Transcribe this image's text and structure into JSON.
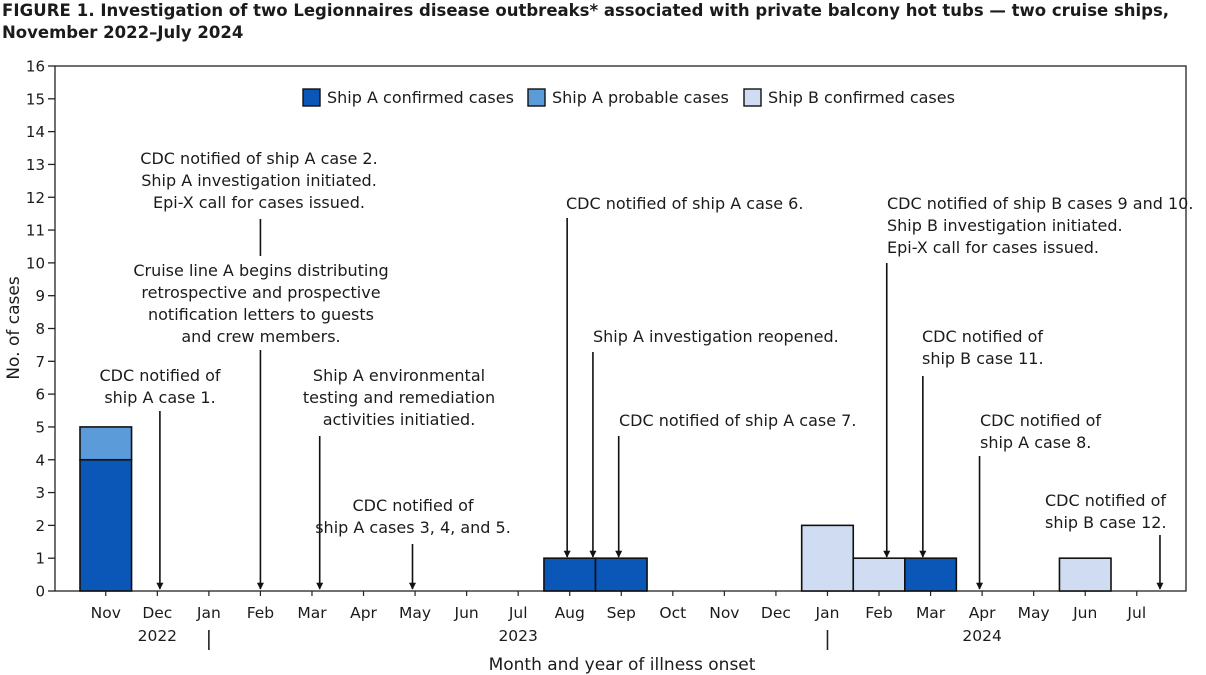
{
  "figure": {
    "label": "FIGURE 1",
    "title": ". Investigation of two Legionnaires disease outbreaks* associated with private balcony hot tubs — two cruise ships,",
    "title_line2": "November 2022–July 2024"
  },
  "chart_data": {
    "type": "bar",
    "stacked": true,
    "xlabel": "Month and year of illness onset",
    "ylabel": "No. of cases",
    "ylim": [
      0,
      16
    ],
    "yticks": [
      0,
      1,
      2,
      3,
      4,
      5,
      6,
      7,
      8,
      9,
      10,
      11,
      12,
      13,
      14,
      15,
      16
    ],
    "grid": false,
    "legend_position": "top-center",
    "categories": [
      "Nov",
      "Dec",
      "Jan",
      "Feb",
      "Mar",
      "Apr",
      "May",
      "Jun",
      "Jul",
      "Aug",
      "Sep",
      "Oct",
      "Nov",
      "Dec",
      "Jan",
      "Feb",
      "Mar",
      "Apr",
      "May",
      "Jun",
      "Jul"
    ],
    "years": [
      {
        "label": "2022",
        "at_category": 1
      },
      {
        "label": "2023",
        "at_category": 8
      },
      {
        "label": "2024",
        "at_category": 17
      }
    ],
    "year_dividers_before_category": [
      2,
      14
    ],
    "series": [
      {
        "name": "Ship A confirmed cases",
        "color": "#0b57b7",
        "values": [
          4,
          0,
          0,
          0,
          0,
          0,
          0,
          0,
          0,
          1,
          1,
          0,
          0,
          0,
          0,
          0,
          1,
          0,
          0,
          0,
          0
        ]
      },
      {
        "name": "Ship A probable cases",
        "color": "#5b9bd9",
        "values": [
          1,
          0,
          0,
          0,
          0,
          0,
          0,
          0,
          0,
          0,
          0,
          0,
          0,
          0,
          0,
          0,
          0,
          0,
          0,
          0,
          0
        ]
      },
      {
        "name": "Ship B confirmed cases",
        "color": "#cfdcf1",
        "values": [
          0,
          0,
          0,
          0,
          0,
          0,
          0,
          0,
          0,
          0,
          0,
          0,
          0,
          0,
          2,
          1,
          0,
          0,
          0,
          1,
          0
        ]
      }
    ],
    "annotations": [
      {
        "lines": [
          "CDC notified of",
          "ship A case 1."
        ],
        "month": 1.05,
        "arrow": true
      },
      {
        "lines": [
          "CDC notified of ship A case 2.",
          "Ship A investigation initiated.",
          "Epi-X call for cases issued."
        ],
        "month": 3.0,
        "arrow": false
      },
      {
        "lines": [
          "Cruise line A begins distributing",
          "retrospective and prospective",
          "notification letters to guests",
          "and crew members."
        ],
        "month": 3.0,
        "arrow": true
      },
      {
        "lines": [
          "Ship A environmental",
          "testing and remediation",
          "activities initiatied."
        ],
        "month": 4.15,
        "arrow": true
      },
      {
        "lines": [
          "CDC notified of",
          "ship A cases 3, 4, and 5."
        ],
        "month": 5.95,
        "arrow": true
      },
      {
        "lines": [
          "CDC notified of ship A case 6."
        ],
        "month": 8.95,
        "arrow": true
      },
      {
        "lines": [
          "Ship A investigation reopened."
        ],
        "month": 9.45,
        "arrow": true
      },
      {
        "lines": [
          "CDC notified of ship A case 7."
        ],
        "month": 9.95,
        "arrow": true
      },
      {
        "lines": [
          "CDC notified of ship B cases 9 and 10.",
          "Ship B investigation initiated.",
          "Epi-X call for cases issued."
        ],
        "month": 15.15,
        "arrow": true
      },
      {
        "lines": [
          "CDC notified of",
          "ship B case 11."
        ],
        "month": 15.85,
        "arrow": true
      },
      {
        "lines": [
          "CDC notified of",
          "ship A case 8."
        ],
        "month": 16.95,
        "arrow": true
      },
      {
        "lines": [
          "CDC notified of",
          "ship B case 12."
        ],
        "month": 20.45,
        "arrow": true
      }
    ]
  }
}
